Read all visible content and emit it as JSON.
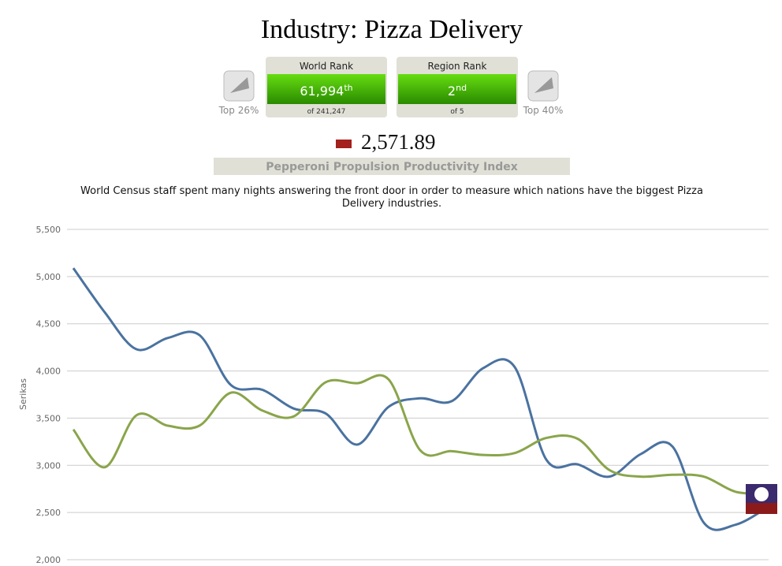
{
  "header": {
    "title": "Industry: Pizza Delivery",
    "world": {
      "label": "World Rank",
      "rank": "61,994",
      "suffix": "th",
      "of": "of 241,247",
      "top": "Top 26%"
    },
    "region": {
      "label": "Region Rank",
      "rank": "2",
      "suffix": "nd",
      "of": "of 5",
      "top": "Top 40%"
    },
    "score": "2,571.89",
    "index_name": "Pepperoni Propulsion Productivity Index",
    "description": "World Census staff spent many nights answering the front door in order to measure which nations have the biggest Pizza Delivery industries."
  },
  "chart_data": {
    "type": "line",
    "ylabel": "Serikas",
    "categories": [
      null,
      null,
      null,
      null,
      null,
      null,
      null,
      null,
      null,
      null,
      null,
      null,
      null,
      null,
      null,
      null,
      null,
      null,
      null,
      null,
      null,
      null,
      null
    ],
    "series": [
      {
        "color": "#4a72a0",
        "values": [
          5090,
          4620,
          4230,
          4350,
          4380,
          3850,
          3800,
          3600,
          3550,
          3220,
          3620,
          3710,
          3680,
          4030,
          4040,
          3060,
          3010,
          2880,
          3120,
          3200,
          2390,
          2370,
          2550
        ]
      },
      {
        "color": "#8aa54b",
        "values": [
          3380,
          2980,
          3530,
          3420,
          3420,
          3770,
          3580,
          3520,
          3880,
          3870,
          3910,
          3160,
          3150,
          3110,
          3130,
          3290,
          3280,
          2950,
          2880,
          2900,
          2880,
          2720,
          2700
        ]
      }
    ],
    "ylim": [
      2000,
      5500
    ],
    "yticks": [
      {
        "value": 2000,
        "label": "2,000"
      },
      {
        "value": 2500,
        "label": "2,500"
      },
      {
        "value": 3000,
        "label": "3,000"
      },
      {
        "value": 3500,
        "label": "3,500"
      },
      {
        "value": 4000,
        "label": "4,000"
      },
      {
        "value": 4500,
        "label": "4,500"
      },
      {
        "value": 5000,
        "label": "5,000"
      },
      {
        "value": 5500,
        "label": "5,500"
      }
    ],
    "grid": true
  }
}
